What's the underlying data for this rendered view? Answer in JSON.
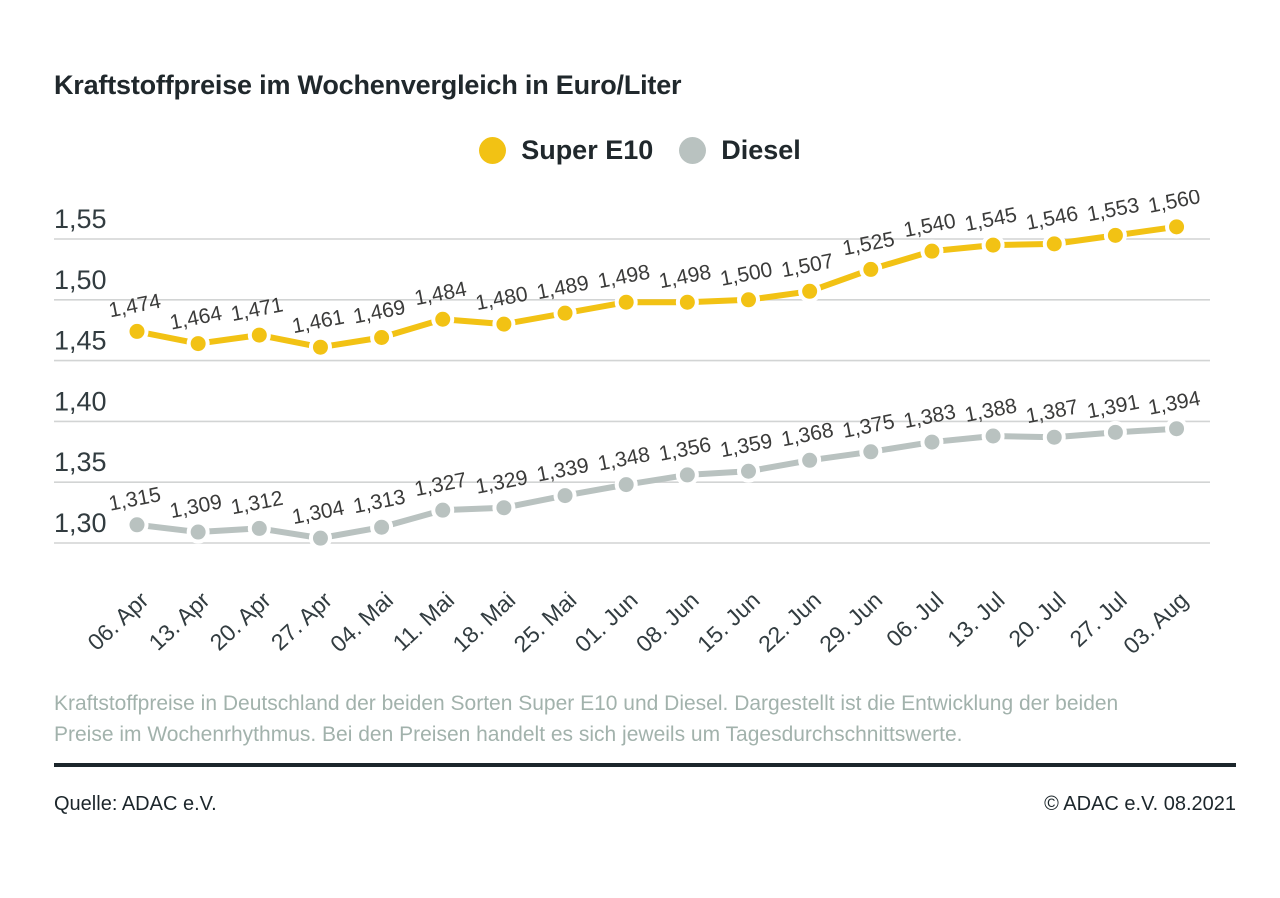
{
  "title": "Kraftstoffpreise im Wochenvergleich in Euro/Liter",
  "caption": "Kraftstoffpreise in Deutschland der beiden Sorten Super E10 und Diesel. Dargestellt ist die Entwicklung der beiden Preise im Wochenrhythmus. Bei den Preisen handelt es sich jeweils um Tagesdurchschnittswerte.",
  "footer": {
    "source": "Quelle: ADAC e.V.",
    "copyright": "© ADAC e.V. 08.2021"
  },
  "colors": {
    "super_e10": "#f2c214",
    "diesel": "#b9c2c0",
    "gridline": "#d2d4d4",
    "tick_text": "#323c40",
    "value_label_text": "#3b3b3a",
    "dark_text": "#1c262b",
    "caption_text": "#a2b2ac"
  },
  "chart_data": {
    "type": "line",
    "title": "Kraftstoffpreise im Wochenvergleich in Euro/Liter",
    "xlabel": "",
    "ylabel": "Euro/Liter",
    "grid": true,
    "legend_position": "top-center",
    "ylim": [
      1.28,
      1.585
    ],
    "x": [
      "06. Apr",
      "13. Apr",
      "20. Apr",
      "27. Apr",
      "04. Mai",
      "11. Mai",
      "18. Mai",
      "25. Mai",
      "01. Jun",
      "08. Jun",
      "15. Jun",
      "22. Jun",
      "29. Jun",
      "06. Jul",
      "13. Jul",
      "20. Jul",
      "27. Jul",
      "03. Aug"
    ],
    "yticks": [
      {
        "value": 1.55,
        "label": "1,55"
      },
      {
        "value": 1.5,
        "label": "1,50"
      },
      {
        "value": 1.45,
        "label": "1,45"
      },
      {
        "value": 1.4,
        "label": "1,40"
      },
      {
        "value": 1.35,
        "label": "1,35"
      },
      {
        "value": 1.3,
        "label": "1,30"
      }
    ],
    "series": [
      {
        "name": "Super E10",
        "color": "#f2c214",
        "values": [
          1.474,
          1.464,
          1.471,
          1.461,
          1.469,
          1.484,
          1.48,
          1.489,
          1.498,
          1.498,
          1.5,
          1.507,
          1.525,
          1.54,
          1.545,
          1.546,
          1.553,
          1.56
        ],
        "labels": [
          "1,474",
          "1,464",
          "1,471",
          "1,461",
          "1,469",
          "1,484",
          "1,480",
          "1,489",
          "1,498",
          "1,498",
          "1,500",
          "1,507",
          "1,525",
          "1,540",
          "1,545",
          "1,546",
          "1,553",
          "1,560"
        ]
      },
      {
        "name": "Diesel",
        "color": "#b9c2c0",
        "values": [
          1.315,
          1.309,
          1.312,
          1.304,
          1.313,
          1.327,
          1.329,
          1.339,
          1.348,
          1.356,
          1.359,
          1.368,
          1.375,
          1.383,
          1.388,
          1.387,
          1.391,
          1.394
        ],
        "labels": [
          "1,315",
          "1,309",
          "1,312",
          "1,304",
          "1,313",
          "1,327",
          "1,329",
          "1,339",
          "1,348",
          "1,356",
          "1,359",
          "1,368",
          "1,375",
          "1,383",
          "1,388",
          "1,387",
          "1,391",
          "1,394"
        ]
      }
    ]
  }
}
